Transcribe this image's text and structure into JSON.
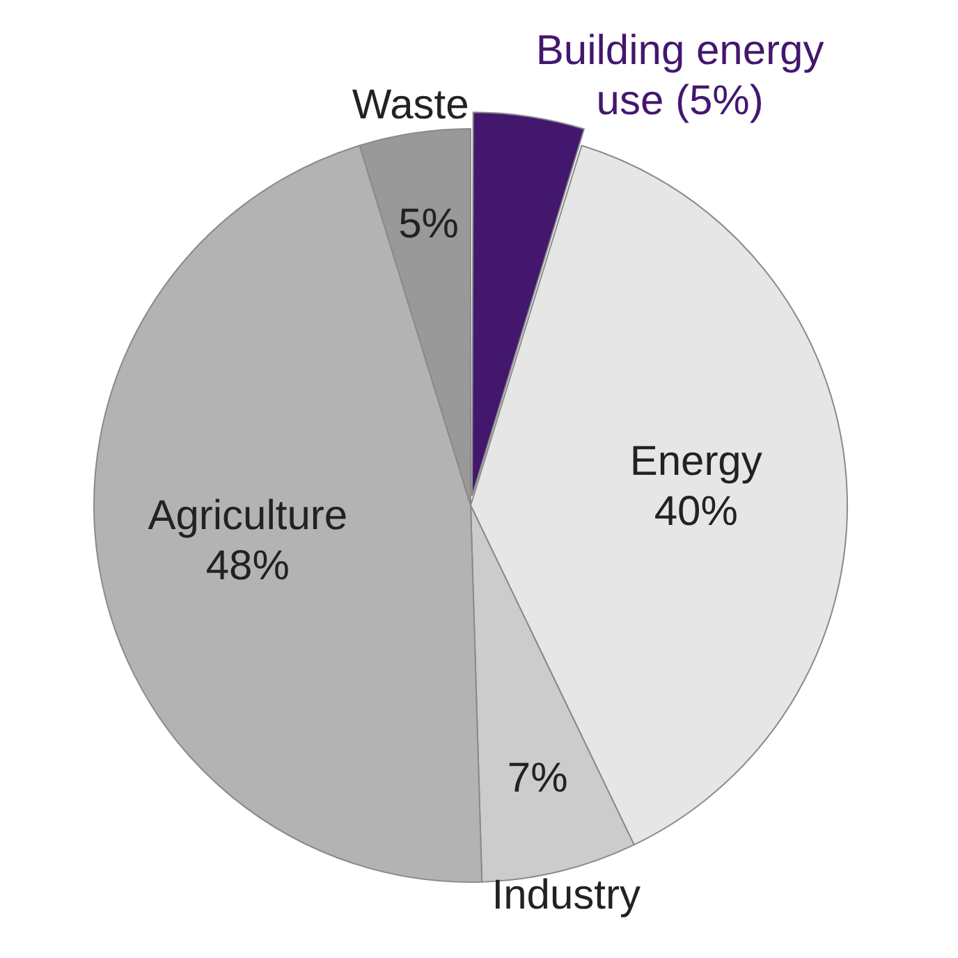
{
  "chart_data": {
    "type": "pie",
    "categories": [
      "Building energy use",
      "Energy",
      "Industry",
      "Agriculture",
      "Waste"
    ],
    "values": [
      5,
      40,
      7,
      48,
      5
    ],
    "value_labels": [
      "(5%)",
      "40%",
      "7%",
      "48%",
      "5%"
    ],
    "colors": [
      "#43176e",
      "#e6e6e6",
      "#cccccc",
      "#b3b3b3",
      "#999999"
    ],
    "legend": false
  }
}
